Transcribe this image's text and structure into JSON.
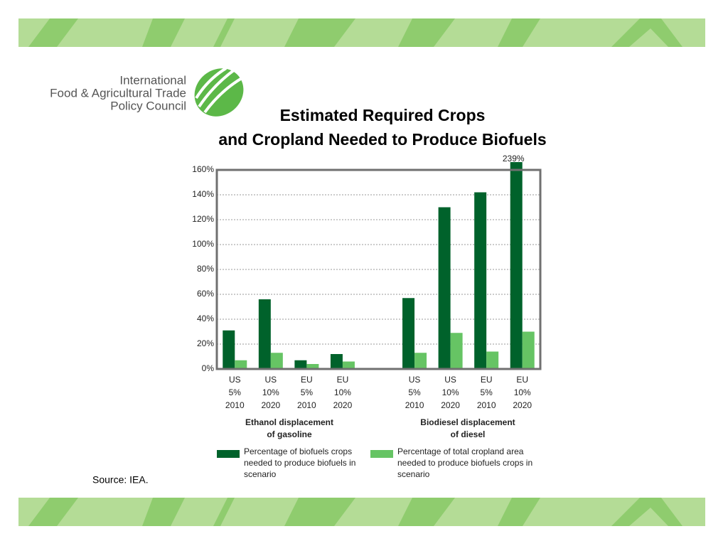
{
  "header": {
    "org": [
      "International",
      "Food & Agricultural Trade",
      "Policy Council"
    ]
  },
  "chart_data": {
    "type": "bar",
    "title": [
      "Estimated Required Crops",
      "and Cropland Needed to Produce Biofuels"
    ],
    "categories": [
      [
        "US",
        "5%",
        "2010"
      ],
      [
        "US",
        "10%",
        "2020"
      ],
      [
        "EU",
        "5%",
        "2010"
      ],
      [
        "EU",
        "10%",
        "2020"
      ],
      null,
      [
        "US",
        "5%",
        "2010"
      ],
      [
        "US",
        "10%",
        "2020"
      ],
      [
        "EU",
        "5%",
        "2010"
      ],
      [
        "EU",
        "10%",
        "2020"
      ]
    ],
    "groups": [
      [
        "Ethanol displacement",
        "of gasoline"
      ],
      [
        "Biodiesel displacement",
        "of diesel"
      ]
    ],
    "series": [
      {
        "name": "Percentage of biofuels crops needed to produce biofuels in scenario",
        "color": "#00622b",
        "values": [
          31,
          56,
          7,
          12,
          null,
          57,
          130,
          142,
          239
        ],
        "value_labels": [
          null,
          null,
          null,
          null,
          null,
          null,
          null,
          null,
          "239%"
        ]
      },
      {
        "name": "Percentage of total cropland area needed to produce biofuels crops in scenario",
        "color": "#66c464",
        "values": [
          7,
          13,
          4,
          6,
          null,
          13,
          29,
          14,
          30
        ]
      }
    ],
    "ylim": [
      0,
      160
    ],
    "yticks": [
      {
        "value": 0,
        "label": "0%"
      },
      {
        "value": 20,
        "label": "20%"
      },
      {
        "value": 40,
        "label": "40%"
      },
      {
        "value": 60,
        "label": "60%"
      },
      {
        "value": 80,
        "label": "80%"
      },
      {
        "value": 100,
        "label": "100%"
      },
      {
        "value": 120,
        "label": "120%"
      },
      {
        "value": 140,
        "label": "140%"
      },
      {
        "value": 160,
        "label": "160%"
      }
    ],
    "grid": true
  },
  "footer": {
    "source": "Source: IEA."
  }
}
